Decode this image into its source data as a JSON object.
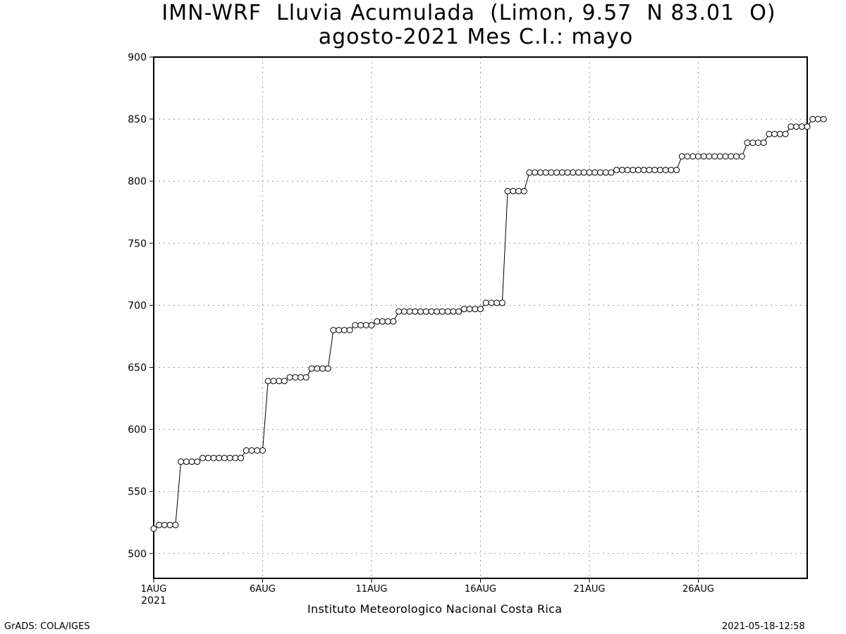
{
  "title_line1": "IMN-WRF  Lluvia Acumulada  (Limon, 9.57  N 83.01  O)",
  "title_line2": "agosto-2021 Mes C.I.: mayo",
  "footer_left": "GrADS: COLA/IGES",
  "footer_right": "2021-05-18-12:58",
  "footer_center": "Instituto Meteorologico Nacional Costa Rica",
  "chart_data": {
    "type": "line",
    "title": "IMN-WRF  Lluvia Acumulada  (Limon, 9.57  N 83.01  O)",
    "subtitle": "agosto-2021 Mes C.I.: mayo",
    "xlabel": "",
    "ylabel": "",
    "xlim": [
      1,
      31
    ],
    "ylim": [
      480,
      900
    ],
    "grid": true,
    "marker": "open-circle",
    "x_tick_values": [
      1,
      6,
      11,
      16,
      21,
      26
    ],
    "x_ticks": [
      "1AUG",
      "6AUG",
      "11AUG",
      "16AUG",
      "21AUG",
      "26AUG"
    ],
    "x_tick_sub": [
      "2021",
      "",
      "",
      "",
      "",
      ""
    ],
    "y_ticks": [
      500,
      550,
      600,
      650,
      700,
      750,
      800,
      850,
      900
    ],
    "x_step_days": 0.25,
    "values": [
      520,
      523,
      523,
      523,
      523,
      574,
      574,
      574,
      574,
      577,
      577,
      577,
      577,
      577,
      577,
      577,
      577,
      583,
      583,
      583,
      583,
      639,
      639,
      639,
      639,
      642,
      642,
      642,
      642,
      649,
      649,
      649,
      649,
      680,
      680,
      680,
      680,
      684,
      684,
      684,
      684,
      687,
      687,
      687,
      687,
      695,
      695,
      695,
      695,
      695,
      695,
      695,
      695,
      695,
      695,
      695,
      695,
      697,
      697,
      697,
      697,
      702,
      702,
      702,
      702,
      792,
      792,
      792,
      792,
      807,
      807,
      807,
      807,
      807,
      807,
      807,
      807,
      807,
      807,
      807,
      807,
      807,
      807,
      807,
      807,
      809,
      809,
      809,
      809,
      809,
      809,
      809,
      809,
      809,
      809,
      809,
      809,
      820,
      820,
      820,
      820,
      820,
      820,
      820,
      820,
      820,
      820,
      820,
      820,
      831,
      831,
      831,
      831,
      838,
      838,
      838,
      838,
      844,
      844,
      844,
      844,
      850,
      850,
      850
    ]
  }
}
